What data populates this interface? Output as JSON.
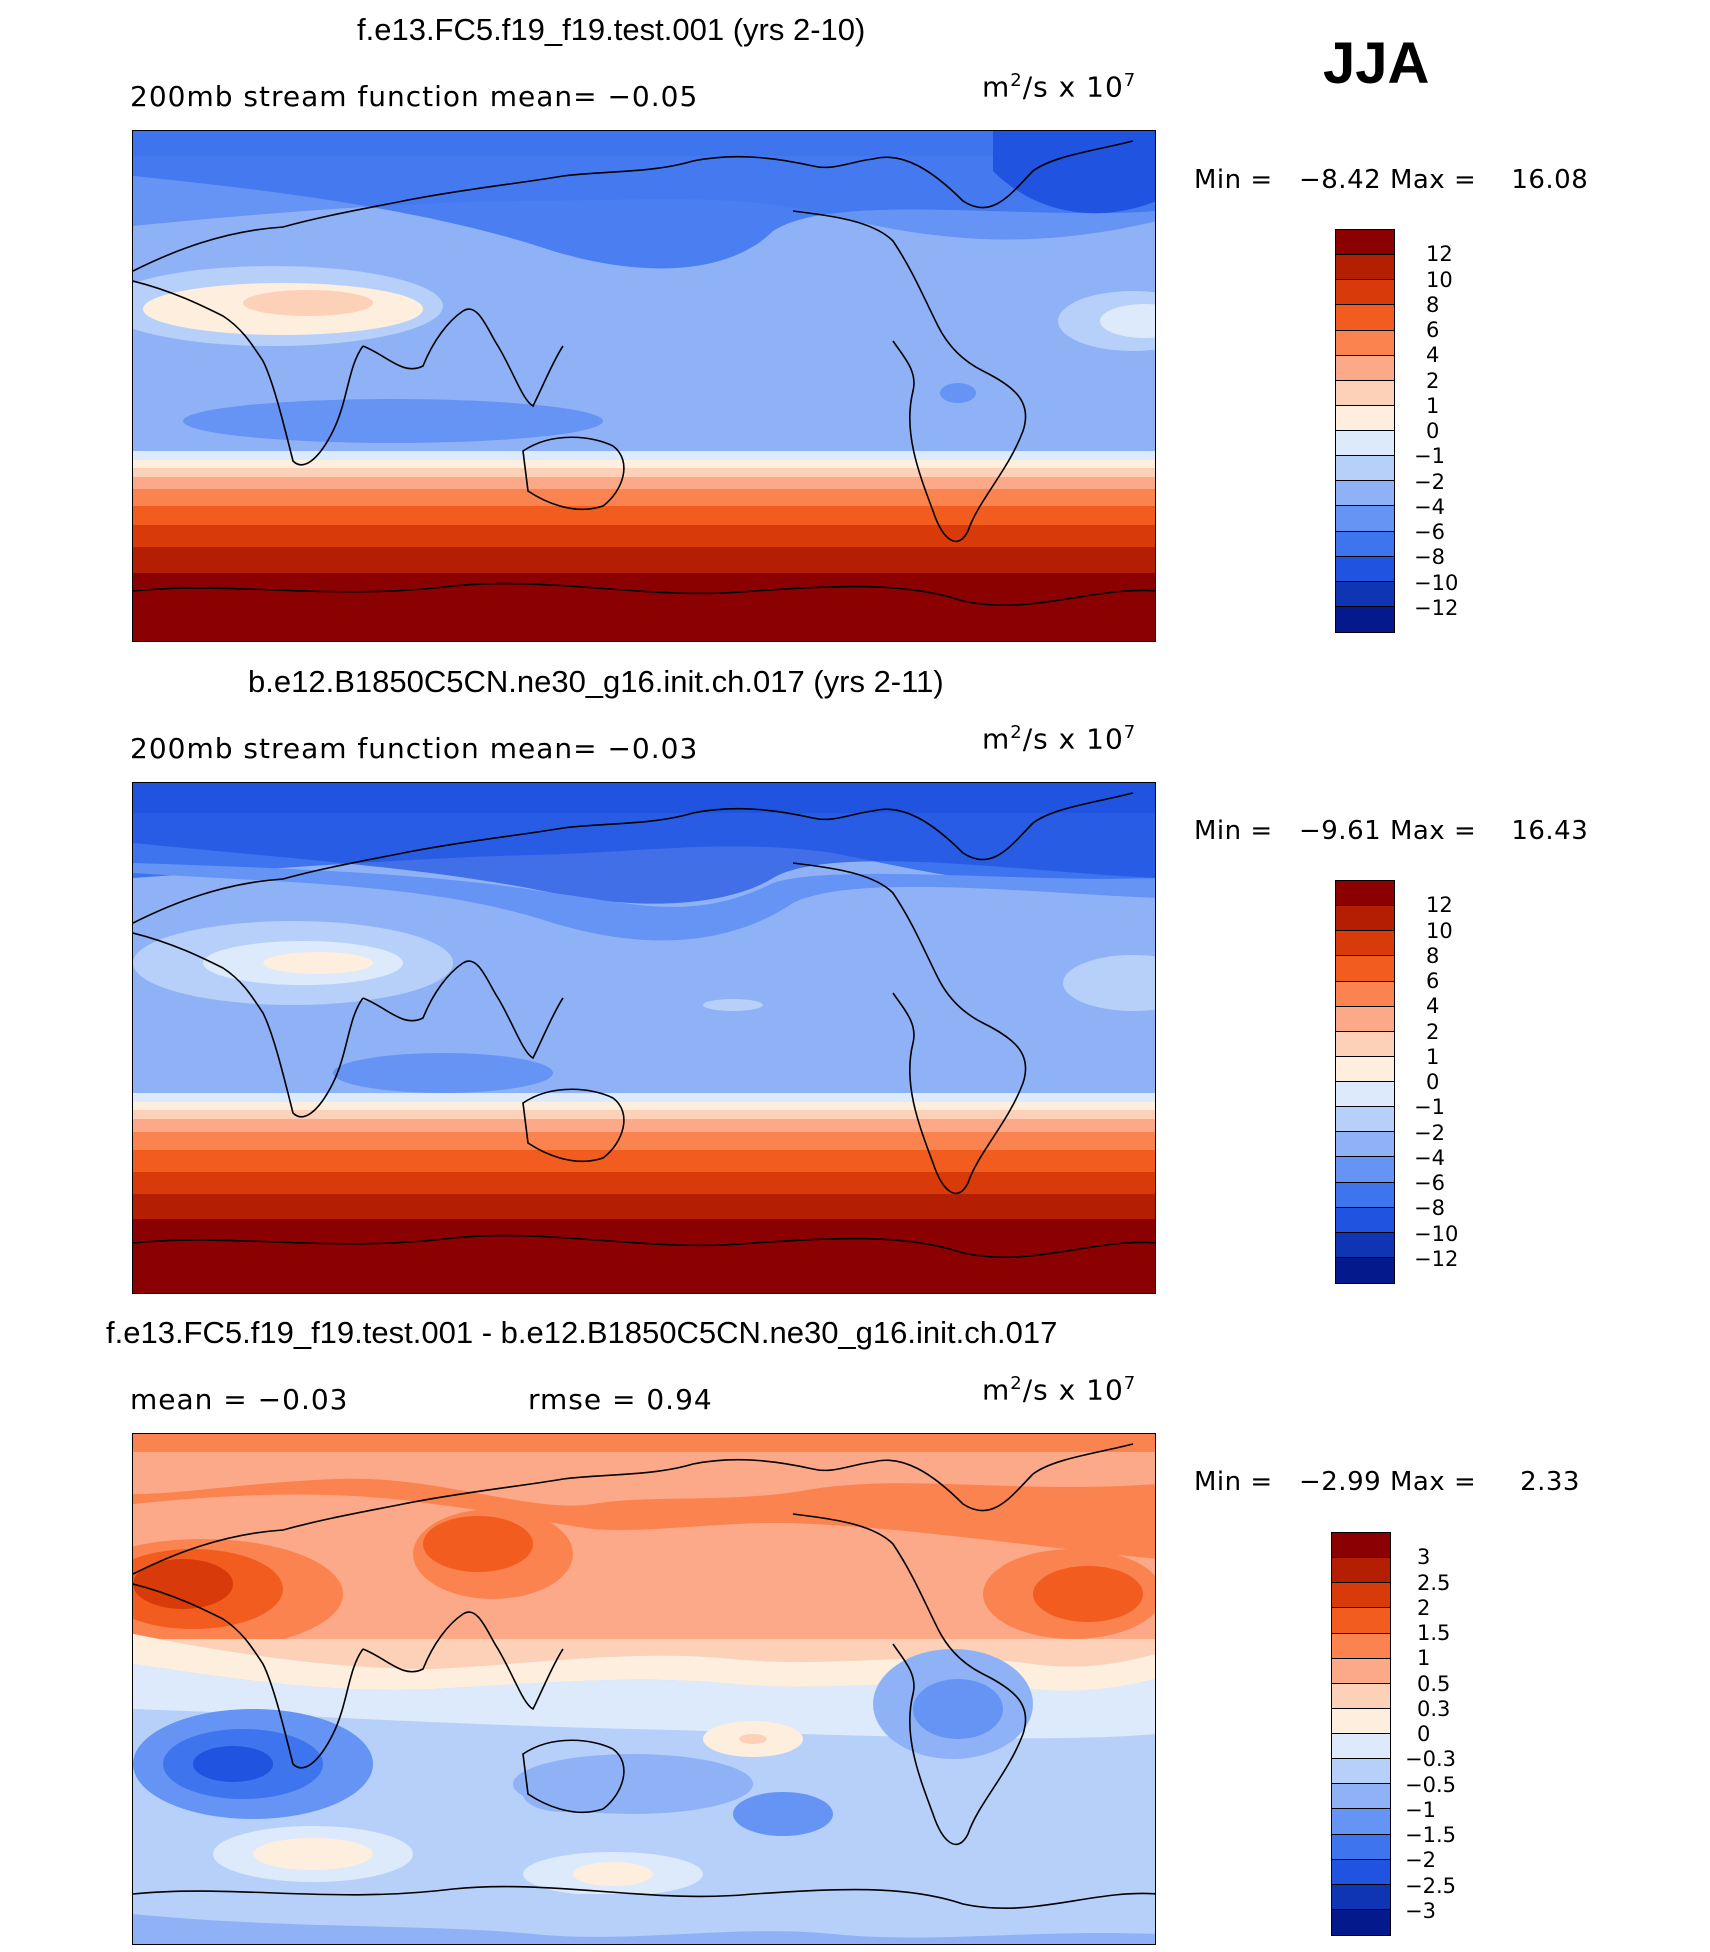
{
  "season": "JJA",
  "panels": [
    {
      "title": "f.e13.FC5.f19_f19.test.001 (yrs 2-10)",
      "left_stat": "200mb stream function   mean=   −0.05",
      "right_stat": "",
      "units_base": "m",
      "units_exp1": "2",
      "units_mid": "/s  x  10",
      "units_exp2": "7",
      "min_label": "Min =",
      "min_value": "−8.42",
      "max_label": "Max =",
      "max_value": "16.08",
      "colorbar_labels": [
        "12",
        "10",
        "8",
        "6",
        "4",
        "2",
        "1",
        "0",
        "−1",
        "−2",
        "−4",
        "−6",
        "−8",
        "−10",
        "−12"
      ],
      "colorbar_colors": [
        "#8b0000",
        "#b41f04",
        "#d83a0a",
        "#f25d1f",
        "#fb8350",
        "#fca98a",
        "#fdd0b8",
        "#fdeedd",
        "#dceafb",
        "#b7d0fa",
        "#8fb2f7",
        "#6594f4",
        "#3f74ef",
        "#1f53e0",
        "#0f35b4",
        "#041a8c"
      ]
    },
    {
      "title": "b.e12.B1850C5CN.ne30_g16.init.ch.017 (yrs 2-11)",
      "left_stat": "200mb stream function   mean=   −0.03",
      "right_stat": "",
      "units_base": "m",
      "units_exp1": "2",
      "units_mid": "/s  x  10",
      "units_exp2": "7",
      "min_label": "Min =",
      "min_value": "−9.61",
      "max_label": "Max =",
      "max_value": "16.43",
      "colorbar_labels": [
        "12",
        "10",
        "8",
        "6",
        "4",
        "2",
        "1",
        "0",
        "−1",
        "−2",
        "−4",
        "−6",
        "−8",
        "−10",
        "−12"
      ],
      "colorbar_colors": [
        "#8b0000",
        "#b41f04",
        "#d83a0a",
        "#f25d1f",
        "#fb8350",
        "#fca98a",
        "#fdd0b8",
        "#fdeedd",
        "#dceafb",
        "#b7d0fa",
        "#8fb2f7",
        "#6594f4",
        "#3f74ef",
        "#1f53e0",
        "#0f35b4",
        "#041a8c"
      ]
    },
    {
      "title": "f.e13.FC5.f19_f19.test.001 - b.e12.B1850C5CN.ne30_g16.init.ch.017",
      "left_stat": "mean =   −0.03",
      "right_stat": "rmse =    0.94",
      "units_base": "m",
      "units_exp1": "2",
      "units_mid": "/s  x  10",
      "units_exp2": "7",
      "min_label": "Min =",
      "min_value": "−2.99",
      "max_label": "Max =",
      "max_value": "2.33",
      "colorbar_labels": [
        "3",
        "2.5",
        "2",
        "1.5",
        "1",
        "0.5",
        "0.3",
        "0",
        "−0.3",
        "−0.5",
        "−1",
        "−1.5",
        "−2",
        "−2.5",
        "−3"
      ],
      "colorbar_colors": [
        "#8b0000",
        "#b41f04",
        "#d83a0a",
        "#f25d1f",
        "#fb8350",
        "#fca98a",
        "#fdd0b8",
        "#fdeedd",
        "#dceafb",
        "#b7d0fa",
        "#8fb2f7",
        "#6594f4",
        "#3f74ef",
        "#1f53e0",
        "#0f35b4",
        "#041a8c"
      ]
    }
  ]
}
